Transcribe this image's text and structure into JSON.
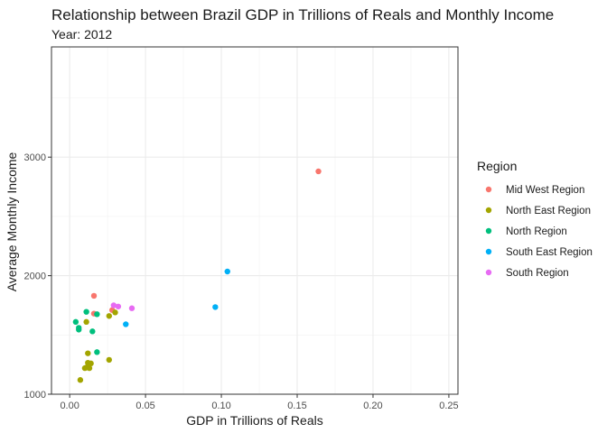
{
  "chart_data": {
    "type": "scatter",
    "title": "Relationship between Brazil GDP in Trillions of Reals and Monthly Income",
    "subtitle": "Year: 2012",
    "xlabel": "GDP in Trillions of Reals",
    "ylabel": "Average Monthly Income",
    "xlim": [
      -0.012,
      0.256
    ],
    "ylim": [
      1000,
      3930
    ],
    "xticks": [
      0.0,
      0.05,
      0.1,
      0.15,
      0.2,
      0.25
    ],
    "xtick_labels": [
      "0.00",
      "0.05",
      "0.10",
      "0.15",
      "0.20",
      "0.25"
    ],
    "xminor": [
      0.025,
      0.075,
      0.125,
      0.175,
      0.225
    ],
    "yticks": [
      1000,
      2000,
      3000
    ],
    "ytick_labels": [
      "1000",
      "2000",
      "3000"
    ],
    "yminor": [
      1500,
      2500,
      3500
    ],
    "grid": true,
    "legend_title": "Region",
    "legend_position": "right",
    "series": [
      {
        "name": "Mid West Region",
        "color": "#F8766D",
        "points": [
          [
            0.016,
            1830
          ],
          [
            0.016,
            1680
          ],
          [
            0.028,
            1710
          ],
          [
            0.164,
            2880
          ]
        ]
      },
      {
        "name": "North East Region",
        "color": "#A3A500",
        "points": [
          [
            0.007,
            1120
          ],
          [
            0.01,
            1220
          ],
          [
            0.011,
            1225
          ],
          [
            0.013,
            1220
          ],
          [
            0.012,
            1265
          ],
          [
            0.014,
            1260
          ],
          [
            0.012,
            1345
          ],
          [
            0.026,
            1290
          ],
          [
            0.011,
            1610
          ],
          [
            0.026,
            1660
          ],
          [
            0.03,
            1690
          ]
        ]
      },
      {
        "name": "North Region",
        "color": "#00BF7D",
        "points": [
          [
            0.004,
            1610
          ],
          [
            0.006,
            1560
          ],
          [
            0.006,
            1545
          ],
          [
            0.011,
            1695
          ],
          [
            0.015,
            1530
          ],
          [
            0.018,
            1675
          ],
          [
            0.018,
            1355
          ]
        ]
      },
      {
        "name": "South East Region",
        "color": "#00B0F6",
        "points": [
          [
            0.037,
            1590
          ],
          [
            0.096,
            1735
          ],
          [
            0.104,
            2035
          ]
        ]
      },
      {
        "name": "South Region",
        "color": "#E76BF3",
        "points": [
          [
            0.029,
            1750
          ],
          [
            0.032,
            1740
          ],
          [
            0.041,
            1725
          ]
        ]
      }
    ]
  }
}
